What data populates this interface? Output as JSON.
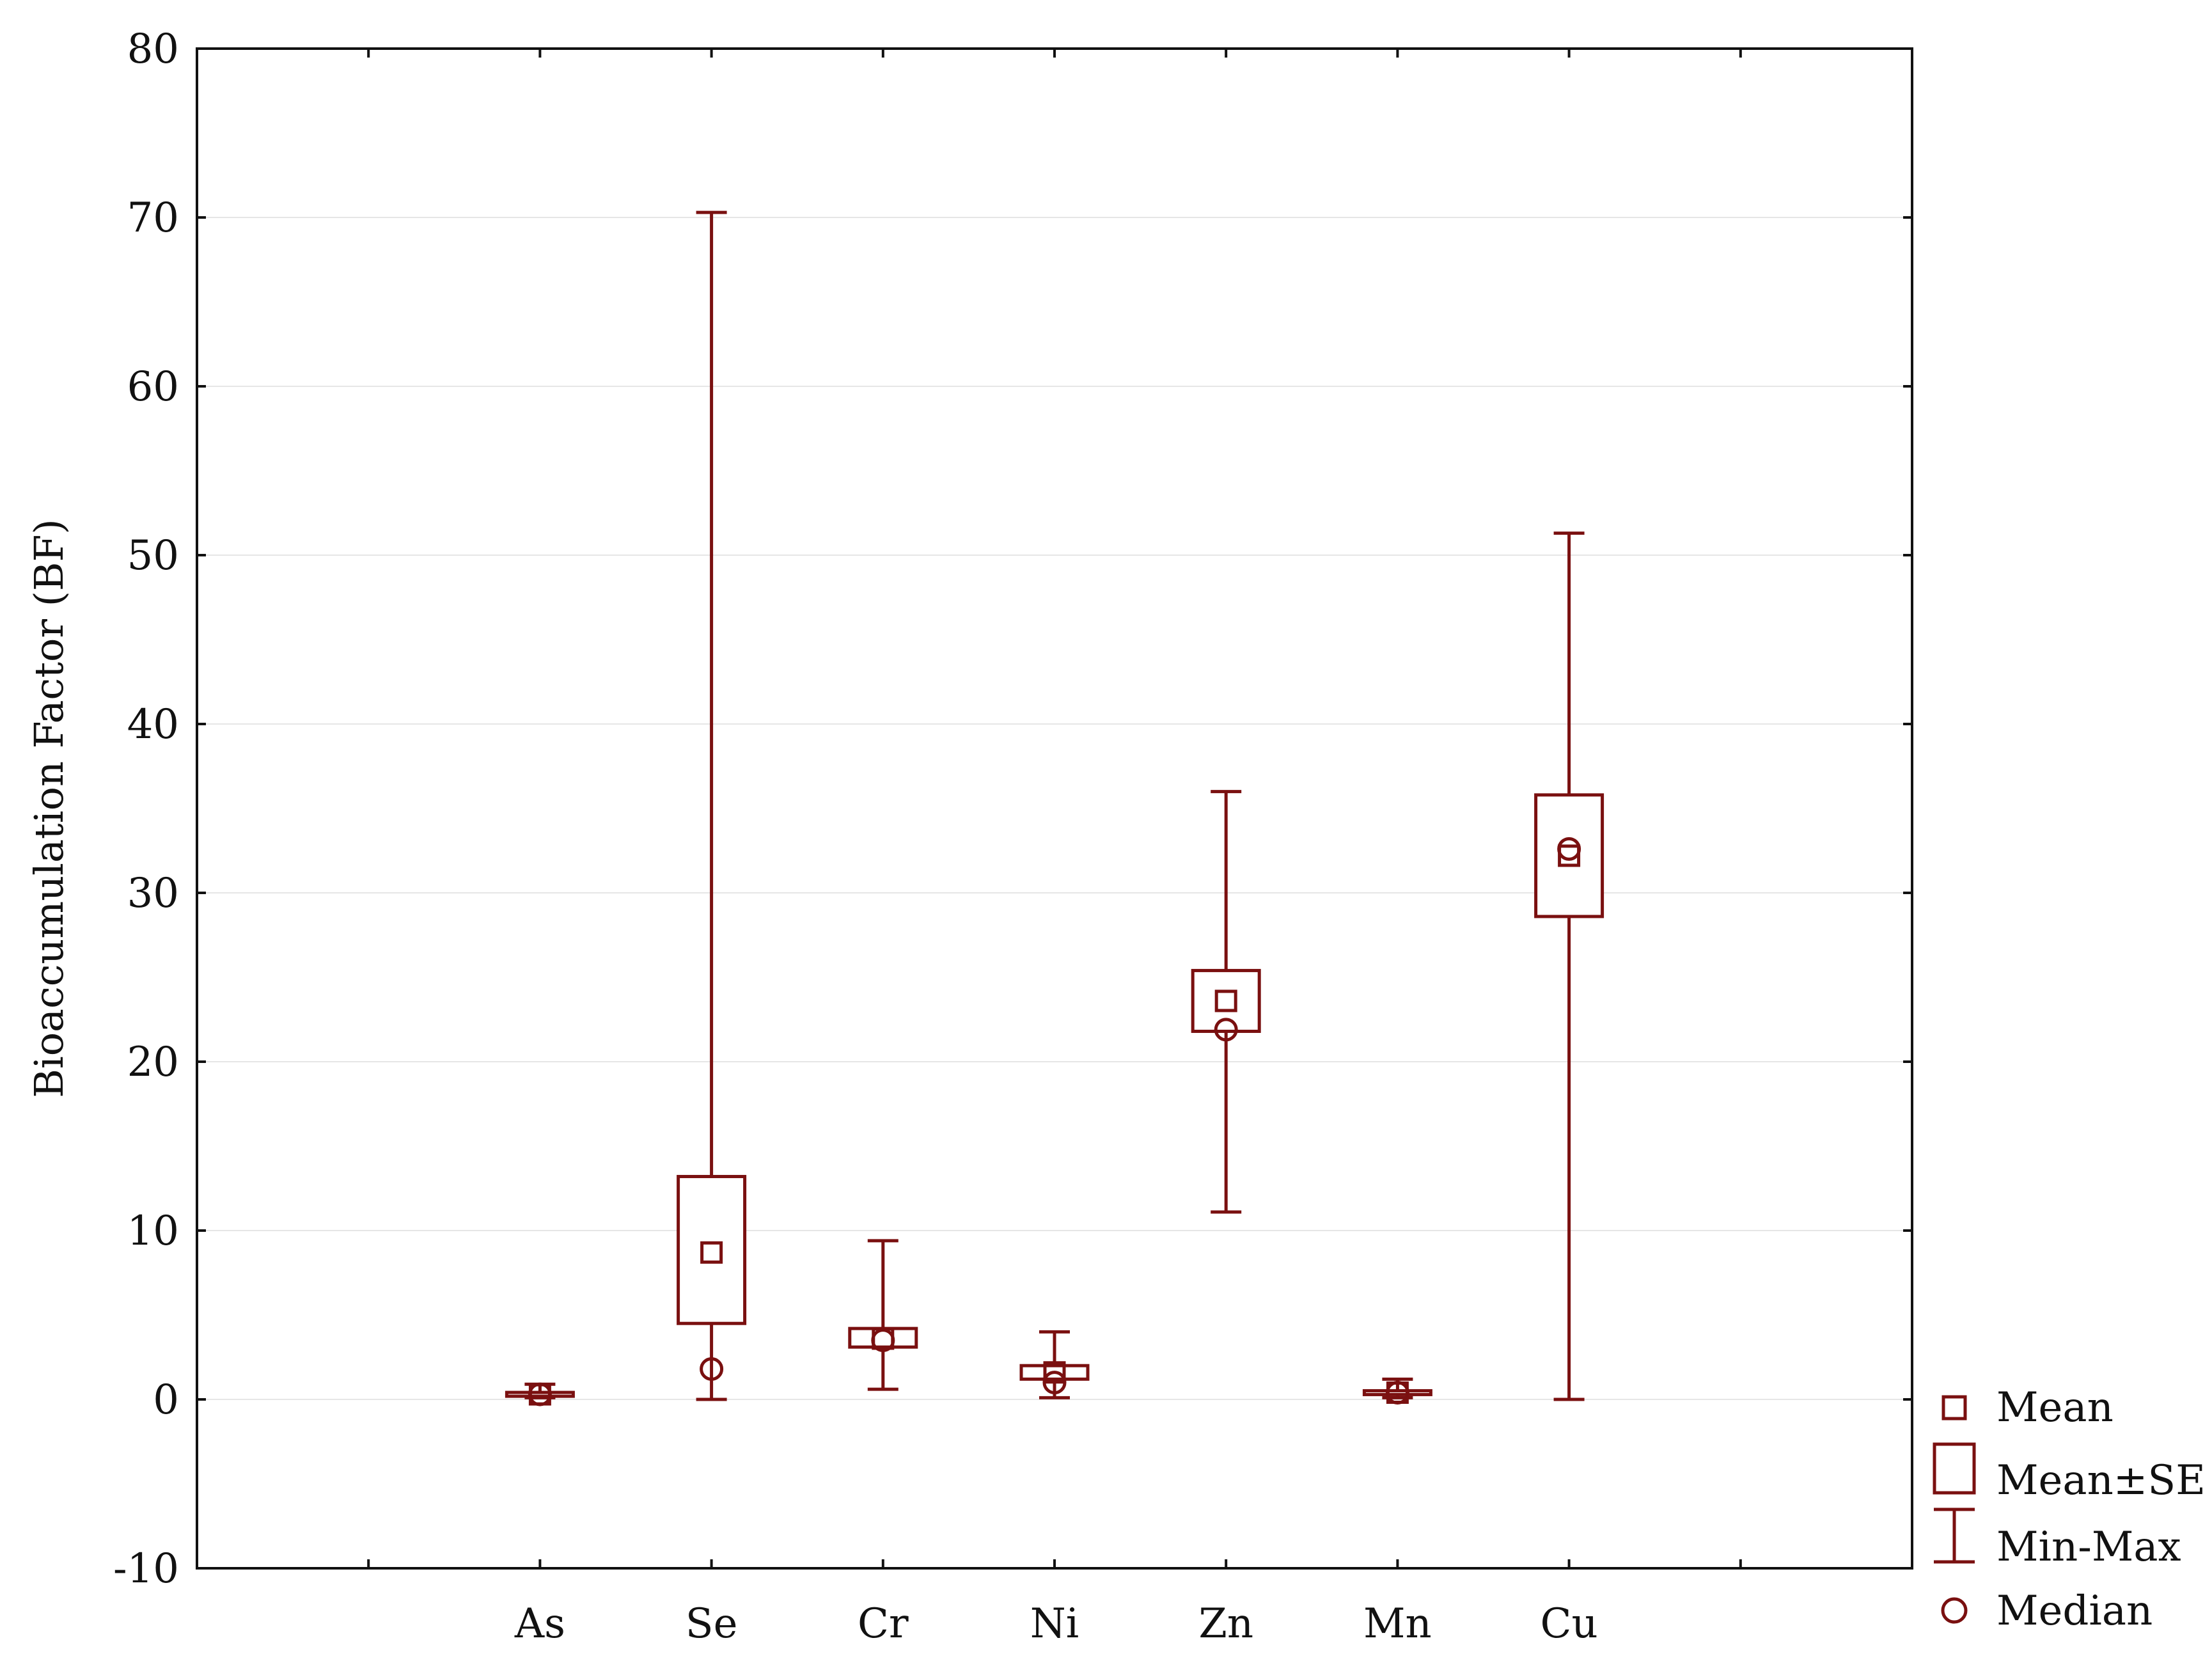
{
  "chart_data": {
    "type": "box",
    "title": "",
    "xlabel": "",
    "ylabel": "Bioaccumulation Factor (BF)",
    "ylim": [
      -10,
      80
    ],
    "yticks": [
      -10,
      0,
      10,
      20,
      30,
      40,
      50,
      60,
      70,
      80
    ],
    "grid": true,
    "legend_position": "bottom-right, outside plot",
    "color": "#7a1010",
    "categories": [
      "As",
      "Se",
      "Cr",
      "Ni",
      "Zn",
      "Mn",
      "Cu"
    ],
    "series": [
      {
        "category": "As",
        "mean": 0.3,
        "mean_minus_se": 0.2,
        "mean_plus_se": 0.4,
        "min": 0.1,
        "max": 0.9,
        "median": 0.3
      },
      {
        "category": "Se",
        "mean": 8.7,
        "mean_minus_se": 4.5,
        "mean_plus_se": 13.2,
        "min": 0.0,
        "max": 70.3,
        "median": 1.8
      },
      {
        "category": "Cr",
        "mean": 3.6,
        "mean_minus_se": 3.1,
        "mean_plus_se": 4.2,
        "min": 0.6,
        "max": 9.4,
        "median": 3.5
      },
      {
        "category": "Ni",
        "mean": 1.6,
        "mean_minus_se": 1.2,
        "mean_plus_se": 2.0,
        "min": 0.1,
        "max": 4.0,
        "median": 1.0
      },
      {
        "category": "Zn",
        "mean": 23.6,
        "mean_minus_se": 21.8,
        "mean_plus_se": 25.4,
        "min": 11.1,
        "max": 36.0,
        "median": 21.9
      },
      {
        "category": "Mn",
        "mean": 0.4,
        "mean_minus_se": 0.3,
        "mean_plus_se": 0.5,
        "min": 0.1,
        "max": 1.2,
        "median": 0.4
      },
      {
        "category": "Cu",
        "mean": 32.2,
        "mean_minus_se": 28.6,
        "mean_plus_se": 35.8,
        "min": 0.0,
        "max": 51.3,
        "median": 32.6
      }
    ],
    "legend": [
      {
        "key": "mean",
        "label": "Mean"
      },
      {
        "key": "se",
        "label": "Mean±SE"
      },
      {
        "key": "minmax",
        "label": "Min-Max"
      },
      {
        "key": "median",
        "label": "Median"
      }
    ]
  }
}
